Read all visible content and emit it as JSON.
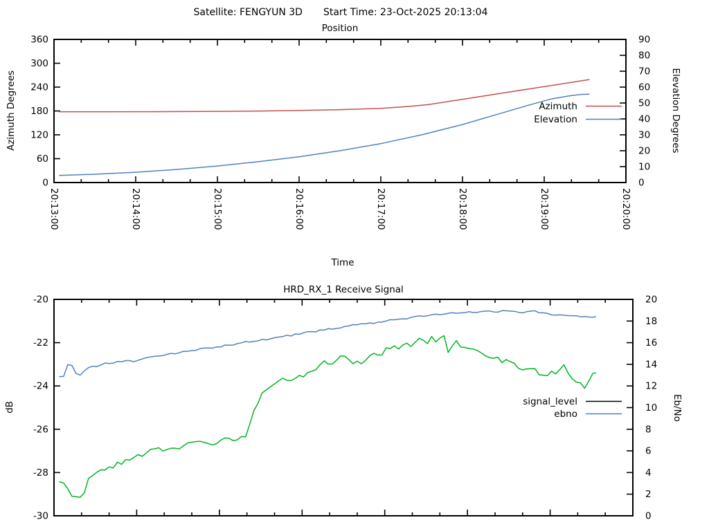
{
  "header": {
    "satellite": "Satellite: FENGYUN 3D",
    "start_time": "Start Time: 23-Oct-2025 20:13:04"
  },
  "colors": {
    "background": "#ffffff",
    "frame": "#000000",
    "azimuth_red": "#c0504d",
    "elevation_blue": "#4f81bd",
    "signal_green": "#00b41e",
    "legend_black": "#000000"
  },
  "chart_data": [
    {
      "type": "line",
      "title": "Position",
      "xlabel": "Time",
      "xlim": [
        0,
        420
      ],
      "x_tick_seconds": [
        0,
        60,
        120,
        180,
        240,
        300,
        360,
        420
      ],
      "x_tick_labels": [
        "20:13:00",
        "20:14:00",
        "20:15:00",
        "20:16:00",
        "20:17:00",
        "20:18:00",
        "20:19:00",
        "20:20:00"
      ],
      "x_minor_step_seconds": 20,
      "x_major_step_seconds": 60,
      "x_labels_visible": true,
      "left": {
        "label": "Azimuth Degrees",
        "lim": [
          0,
          360
        ],
        "ticks": [
          0,
          60,
          120,
          180,
          240,
          300,
          360
        ]
      },
      "right": {
        "label": "Elevation Degrees",
        "lim": [
          0,
          90
        ],
        "ticks": [
          0,
          10,
          20,
          30,
          40,
          50,
          60,
          70,
          80,
          90
        ]
      },
      "legend": [
        {
          "label": "Azimuth",
          "color": "#c0504d"
        },
        {
          "label": "Elevation",
          "color": "#4f81bd"
        }
      ],
      "series": [
        {
          "name": "Azimuth",
          "axis": "left",
          "color": "#c0504d",
          "noise": 0,
          "points": [
            [
              4,
              178
            ],
            [
              40,
              178
            ],
            [
              80,
              178.3
            ],
            [
              120,
              179
            ],
            [
              150,
              179.9
            ],
            [
              180,
              181.2
            ],
            [
              210,
              183.3
            ],
            [
              240,
              186.5
            ],
            [
              255,
              190
            ],
            [
              265,
              192.8
            ],
            [
              275,
              196
            ],
            [
              305,
              212
            ],
            [
              335,
              228
            ],
            [
              365,
              244
            ],
            [
              393,
              259
            ]
          ]
        },
        {
          "name": "Elevation",
          "axis": "right",
          "color": "#4f81bd",
          "noise": 0,
          "points": [
            [
              4,
              4.5
            ],
            [
              30,
              5.2
            ],
            [
              60,
              6.5
            ],
            [
              90,
              8.2
            ],
            [
              120,
              10.4
            ],
            [
              150,
              13.1
            ],
            [
              180,
              16.2
            ],
            [
              210,
              20.0
            ],
            [
              240,
              24.5
            ],
            [
              270,
              30.0
            ],
            [
              300,
              36.5
            ],
            [
              330,
              44.0
            ],
            [
              350,
              49.0
            ],
            [
              365,
              52.5
            ],
            [
              378,
              54.5
            ],
            [
              386,
              55.3
            ],
            [
              393,
              55.6
            ]
          ]
        }
      ]
    },
    {
      "type": "line",
      "title": "HRD_RX_1 Receive Signal",
      "xlabel": "Time",
      "xlim": [
        0,
        420
      ],
      "x_tick_seconds": [
        0,
        60,
        120,
        180,
        240,
        300,
        360,
        420
      ],
      "x_tick_labels": [
        "20:13:00",
        "20:14:00",
        "20:15:00",
        "20:16:00",
        "20:17:00",
        "20:18:00",
        "20:19:00",
        "20:20:00"
      ],
      "x_minor_step_seconds": 20,
      "x_major_step_seconds": 60,
      "x_labels_visible": false,
      "left": {
        "label": "dB",
        "lim": [
          -30,
          -20
        ],
        "ticks": [
          -30,
          -28,
          -26,
          -24,
          -22,
          -20
        ]
      },
      "right": {
        "label": "Eb/No",
        "lim": [
          0,
          20
        ],
        "ticks": [
          0,
          2,
          4,
          6,
          8,
          10,
          12,
          14,
          16,
          18,
          20
        ]
      },
      "legend": [
        {
          "label": "signal_level",
          "color": "#000000"
        },
        {
          "label": "ebno",
          "color": "#4f81bd"
        }
      ],
      "series": [
        {
          "name": "signal_level",
          "axis": "left",
          "color": "#00b41e",
          "noise": 0.12,
          "points": [
            [
              4,
              -28.4
            ],
            [
              6,
              -28.9
            ],
            [
              8,
              -28.0
            ],
            [
              10,
              -28.7
            ],
            [
              12,
              -29.5
            ],
            [
              14,
              -28.8
            ],
            [
              16,
              -29.2
            ],
            [
              18,
              -28.9
            ],
            [
              20,
              -29.3
            ],
            [
              23,
              -28.6
            ],
            [
              26,
              -28.2
            ],
            [
              30,
              -28.0
            ],
            [
              38,
              -27.8
            ],
            [
              46,
              -27.6
            ],
            [
              54,
              -27.4
            ],
            [
              62,
              -27.2
            ],
            [
              72,
              -27.0
            ],
            [
              82,
              -26.9
            ],
            [
              92,
              -26.8
            ],
            [
              100,
              -26.7
            ],
            [
              108,
              -26.6
            ],
            [
              114,
              -26.7
            ],
            [
              120,
              -26.55
            ],
            [
              127,
              -26.45
            ],
            [
              134,
              -26.45
            ],
            [
              138,
              -26.4
            ],
            [
              143,
              -25.6
            ],
            [
              148,
              -24.7
            ],
            [
              152,
              -24.15
            ],
            [
              155,
              -24.3
            ],
            [
              158,
              -24.05
            ],
            [
              162,
              -23.9
            ],
            [
              166,
              -23.65
            ],
            [
              171,
              -23.7
            ],
            [
              176,
              -23.6
            ],
            [
              181,
              -23.5
            ],
            [
              186,
              -23.35
            ],
            [
              191,
              -23.2
            ],
            [
              196,
              -22.85
            ],
            [
              201,
              -22.95
            ],
            [
              206,
              -22.75
            ],
            [
              210,
              -22.6
            ],
            [
              214,
              -22.9
            ],
            [
              217,
              -23.05
            ],
            [
              221,
              -22.85
            ],
            [
              226,
              -22.9
            ],
            [
              230,
              -22.45
            ],
            [
              234,
              -22.6
            ],
            [
              238,
              -22.5
            ],
            [
              242,
              -22.3
            ],
            [
              246,
              -22.1
            ],
            [
              250,
              -22.35
            ],
            [
              254,
              -22.15
            ],
            [
              256,
              -21.95
            ],
            [
              259,
              -22.15
            ],
            [
              262,
              -22.05
            ],
            [
              265,
              -21.85
            ],
            [
              267,
              -21.8
            ],
            [
              269,
              -22.0
            ],
            [
              272,
              -21.9
            ],
            [
              275,
              -21.7
            ],
            [
              278,
              -21.95
            ],
            [
              281,
              -21.75
            ],
            [
              283,
              -21.6
            ],
            [
              286,
              -22.4
            ],
            [
              289,
              -22.1
            ],
            [
              292,
              -21.95
            ],
            [
              295,
              -22.1
            ],
            [
              298,
              -22.2
            ],
            [
              301,
              -22.35
            ],
            [
              304,
              -22.25
            ],
            [
              308,
              -22.3
            ],
            [
              313,
              -22.6
            ],
            [
              318,
              -22.65
            ],
            [
              323,
              -22.8
            ],
            [
              328,
              -22.9
            ],
            [
              333,
              -23.0
            ],
            [
              338,
              -23.15
            ],
            [
              342,
              -23.25
            ],
            [
              346,
              -23.1
            ],
            [
              350,
              -23.3
            ],
            [
              353,
              -23.45
            ],
            [
              356,
              -23.6
            ],
            [
              359,
              -23.4
            ],
            [
              362,
              -23.3
            ],
            [
              365,
              -23.45
            ],
            [
              369,
              -23.0
            ],
            [
              372,
              -23.3
            ],
            [
              375,
              -23.5
            ],
            [
              378,
              -23.65
            ],
            [
              381,
              -23.9
            ],
            [
              384,
              -24.1
            ],
            [
              387,
              -23.85
            ],
            [
              390,
              -23.6
            ],
            [
              393,
              -23.4
            ]
          ]
        },
        {
          "name": "ebno",
          "axis": "right",
          "color": "#4f81bd",
          "noise": 0.08,
          "points": [
            [
              4,
              12.9
            ],
            [
              6,
              12.4
            ],
            [
              8,
              13.2
            ],
            [
              10,
              13.9
            ],
            [
              12,
              14.15
            ],
            [
              14,
              13.6
            ],
            [
              16,
              13.1
            ],
            [
              18,
              12.85
            ],
            [
              21,
              13.2
            ],
            [
              24,
              13.6
            ],
            [
              27,
              13.9
            ],
            [
              30,
              13.75
            ],
            [
              34,
              13.95
            ],
            [
              38,
              14.1
            ],
            [
              42,
              14.0
            ],
            [
              46,
              14.2
            ],
            [
              52,
              14.35
            ],
            [
              58,
              14.3
            ],
            [
              64,
              14.5
            ],
            [
              72,
              14.7
            ],
            [
              80,
              14.9
            ],
            [
              88,
              15.0
            ],
            [
              96,
              15.2
            ],
            [
              104,
              15.35
            ],
            [
              112,
              15.5
            ],
            [
              120,
              15.65
            ],
            [
              130,
              15.85
            ],
            [
              140,
              16.05
            ],
            [
              150,
              16.25
            ],
            [
              160,
              16.45
            ],
            [
              170,
              16.65
            ],
            [
              180,
              16.85
            ],
            [
              190,
              17.05
            ],
            [
              200,
              17.25
            ],
            [
              210,
              17.45
            ],
            [
              220,
              17.65
            ],
            [
              230,
              17.8
            ],
            [
              240,
              18.0
            ],
            [
              250,
              18.15
            ],
            [
              260,
              18.35
            ],
            [
              270,
              18.5
            ],
            [
              280,
              18.6
            ],
            [
              290,
              18.7
            ],
            [
              300,
              18.8
            ],
            [
              310,
              18.85
            ],
            [
              320,
              18.9
            ],
            [
              330,
              18.9
            ],
            [
              340,
              18.8
            ],
            [
              345,
              18.95
            ],
            [
              350,
              18.85
            ],
            [
              355,
              18.7
            ],
            [
              360,
              18.65
            ],
            [
              365,
              18.55
            ],
            [
              370,
              18.5
            ],
            [
              375,
              18.45
            ],
            [
              380,
              18.4
            ],
            [
              386,
              18.35
            ],
            [
              393,
              18.4
            ]
          ]
        }
      ]
    }
  ]
}
